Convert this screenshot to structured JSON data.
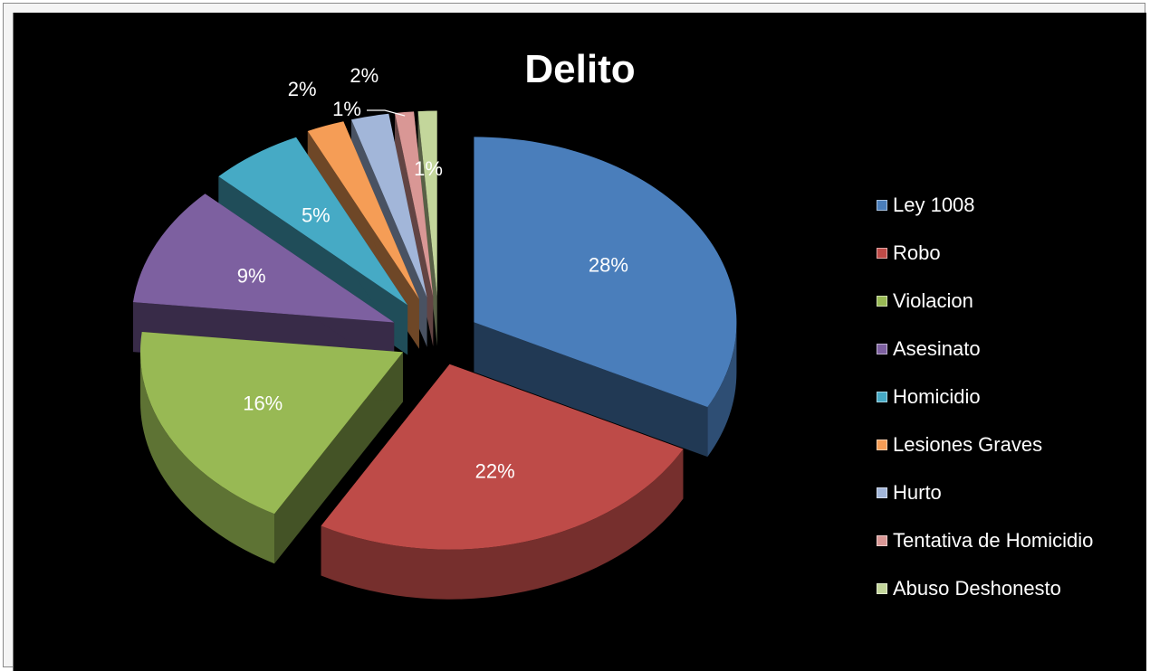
{
  "chart_data": {
    "type": "pie",
    "title": "Delito",
    "slices": [
      {
        "label": "Ley 1008",
        "value": 28,
        "value_label": "28%",
        "color": "#4a7ebb"
      },
      {
        "label": "Robo",
        "value": 22,
        "value_label": "22%",
        "color": "#be4b48"
      },
      {
        "label": "Violacion",
        "value": 16,
        "value_label": "16%",
        "color": "#98b954"
      },
      {
        "label": "Asesinato",
        "value": 9,
        "value_label": "9%",
        "color": "#7d60a0"
      },
      {
        "label": "Homicidio",
        "value": 5,
        "value_label": "5%",
        "color": "#46aac5"
      },
      {
        "label": "Lesiones Graves",
        "value": 2,
        "value_label": "2%",
        "color": "#f59d56"
      },
      {
        "label": "Hurto",
        "value": 2,
        "value_label": "2%",
        "color": "#a2b6d9"
      },
      {
        "label": "Tentativa de Homicidio",
        "value": 1,
        "value_label": "1%",
        "color": "#d99795"
      },
      {
        "label": "Abuso Deshonesto",
        "value": 1,
        "value_label": "1%",
        "color": "#c3d69b"
      }
    ],
    "legend_position": "right",
    "background": "#000000",
    "text_color": "#ffffff"
  }
}
